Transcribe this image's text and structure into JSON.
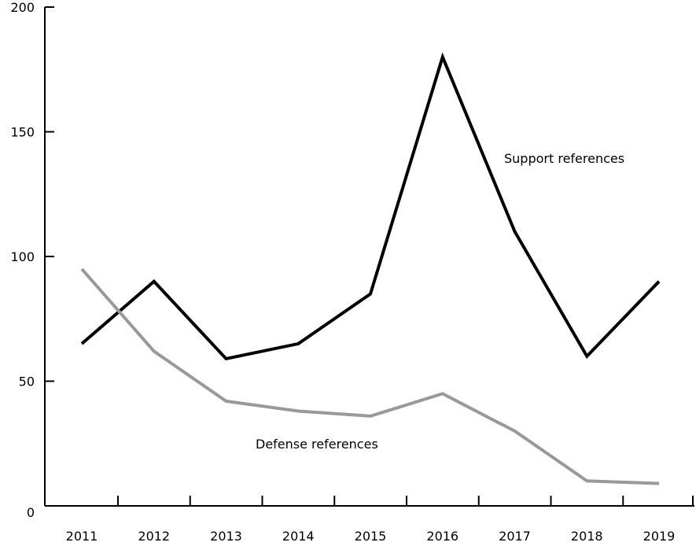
{
  "chart_data": {
    "type": "line",
    "title": "",
    "xlabel": "",
    "ylabel": "",
    "categories": [
      "2011",
      "2012",
      "2013",
      "2014",
      "2015",
      "2016",
      "2017",
      "2018",
      "2019"
    ],
    "ylim": [
      0,
      200
    ],
    "yticks": [
      0,
      50,
      100,
      150,
      200
    ],
    "grid": false,
    "legend": "none",
    "series": [
      {
        "name": "Support references",
        "color": "#000000",
        "values": [
          65,
          90,
          59,
          65,
          85,
          180,
          110,
          60,
          90
        ]
      },
      {
        "name": "Defense references",
        "color": "#999999",
        "values": [
          95,
          62,
          42,
          38,
          36,
          45,
          30,
          10,
          9
        ]
      }
    ]
  }
}
